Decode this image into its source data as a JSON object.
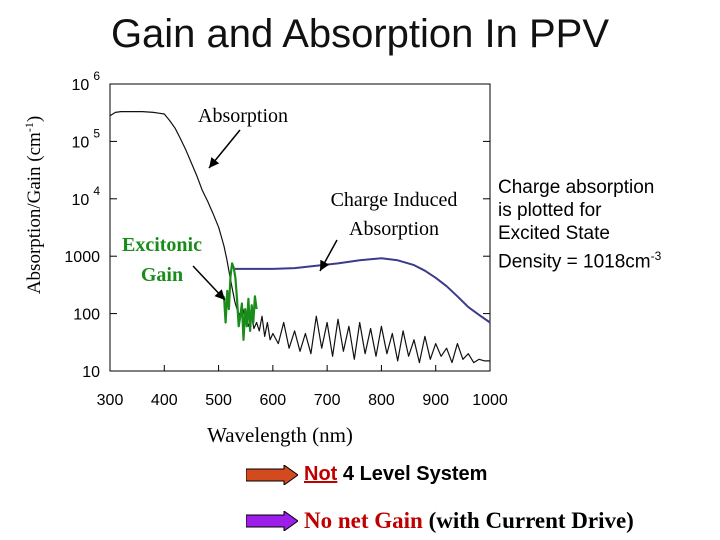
{
  "title": "Gain and Absorption In PPV",
  "side_note": {
    "line1": "Charge absorption",
    "line2": "is plotted for",
    "line3": "Excited State",
    "line4_prefix": "Density = 1018cm",
    "line4_sup": "-3"
  },
  "legend": {
    "item1_not": "Not",
    "item1_rest": " 4 Level System",
    "item2_red": "No net Gain",
    "item2_black": " (with Current Drive)"
  },
  "colors": {
    "absorption": "#111111",
    "gain": "#1a8c1a",
    "charge_induced": "#3b3b8c",
    "accent_red": "#c00000",
    "arrow1": "#d24a1e",
    "arrow2": "#9b1fe8"
  },
  "chart_data": {
    "type": "line",
    "title": "Gain and Absorption In PPV",
    "xlabel": "Wavelength (nm)",
    "ylabel_main": "Absorption/Gain (cm",
    "ylabel_sup": "-1",
    "ylabel_tail": ")",
    "xlim": [
      300,
      1000
    ],
    "ylim": [
      10,
      1000000
    ],
    "yscale": "log",
    "x_ticks": [
      300,
      400,
      500,
      600,
      700,
      800,
      900,
      1000
    ],
    "x_tick_labels": [
      "300",
      "400",
      "500",
      "600",
      "700",
      "800",
      "900",
      "1000"
    ],
    "y_ticks": [
      {
        "value": 1000000,
        "base": "10",
        "exp": "6"
      },
      {
        "value": 100000,
        "base": "10",
        "exp": "5"
      },
      {
        "value": 10000,
        "base": "10",
        "exp": "4"
      },
      {
        "value": 1000,
        "base": "1000",
        "exp": ""
      },
      {
        "value": 100,
        "base": "100",
        "exp": ""
      },
      {
        "value": 10,
        "base": "10",
        "exp": ""
      }
    ],
    "annotations": {
      "absorption": "Absorption",
      "charge_line1": "Charge Induced",
      "charge_line2": "Absorption",
      "excitonic_line1": "Excitonic",
      "excitonic_line2": "Gain"
    },
    "series": [
      {
        "key": "absorption",
        "x": [
          300,
          310,
          320,
          340,
          360,
          380,
          390,
          400,
          410,
          420,
          430,
          440,
          450,
          460,
          470,
          480,
          490,
          500,
          505,
          510,
          515,
          520,
          525,
          530,
          535,
          540,
          545,
          550,
          555,
          560,
          565,
          570,
          575,
          580,
          585,
          590,
          595,
          600,
          610,
          620,
          630,
          640,
          650,
          660,
          670,
          680,
          690,
          700,
          710,
          720,
          730,
          740,
          750,
          760,
          770,
          780,
          790,
          800,
          810,
          820,
          830,
          840,
          850,
          860,
          870,
          880,
          890,
          900,
          910,
          920,
          930,
          940,
          950,
          960,
          970,
          980,
          990,
          1000
        ],
        "y": [
          280000,
          320000,
          330000,
          330000,
          330000,
          320000,
          310000,
          300000,
          230000,
          170000,
          110000,
          70000,
          42000,
          25000,
          14000,
          9000,
          5500,
          3200,
          2200,
          1500,
          900,
          500,
          280,
          160,
          110,
          90,
          120,
          80,
          60,
          100,
          55,
          70,
          50,
          90,
          40,
          70,
          35,
          45,
          30,
          70,
          25,
          50,
          22,
          45,
          20,
          90,
          25,
          70,
          18,
          80,
          22,
          60,
          16,
          70,
          20,
          55,
          18,
          60,
          20,
          45,
          15,
          50,
          18,
          35,
          14,
          40,
          16,
          30,
          18,
          25,
          14,
          30,
          16,
          20,
          14,
          16,
          15,
          15
        ]
      },
      {
        "key": "gain",
        "x": [
          510,
          513,
          516,
          519,
          522,
          525,
          528,
          531,
          534,
          537,
          540,
          543,
          546,
          549,
          552,
          555,
          558,
          561,
          564,
          567,
          570
        ],
        "y": [
          200,
          70,
          250,
          120,
          450,
          750,
          620,
          420,
          180,
          60,
          90,
          150,
          35,
          120,
          60,
          180,
          50,
          140,
          70,
          200,
          120
        ]
      },
      {
        "key": "charge_induced",
        "x": [
          530,
          560,
          600,
          640,
          680,
          720,
          760,
          800,
          830,
          860,
          880,
          900,
          920,
          940,
          960,
          980,
          1000
        ],
        "y": [
          600,
          600,
          600,
          620,
          680,
          750,
          850,
          920,
          850,
          700,
          560,
          420,
          300,
          200,
          130,
          95,
          70
        ]
      }
    ]
  }
}
